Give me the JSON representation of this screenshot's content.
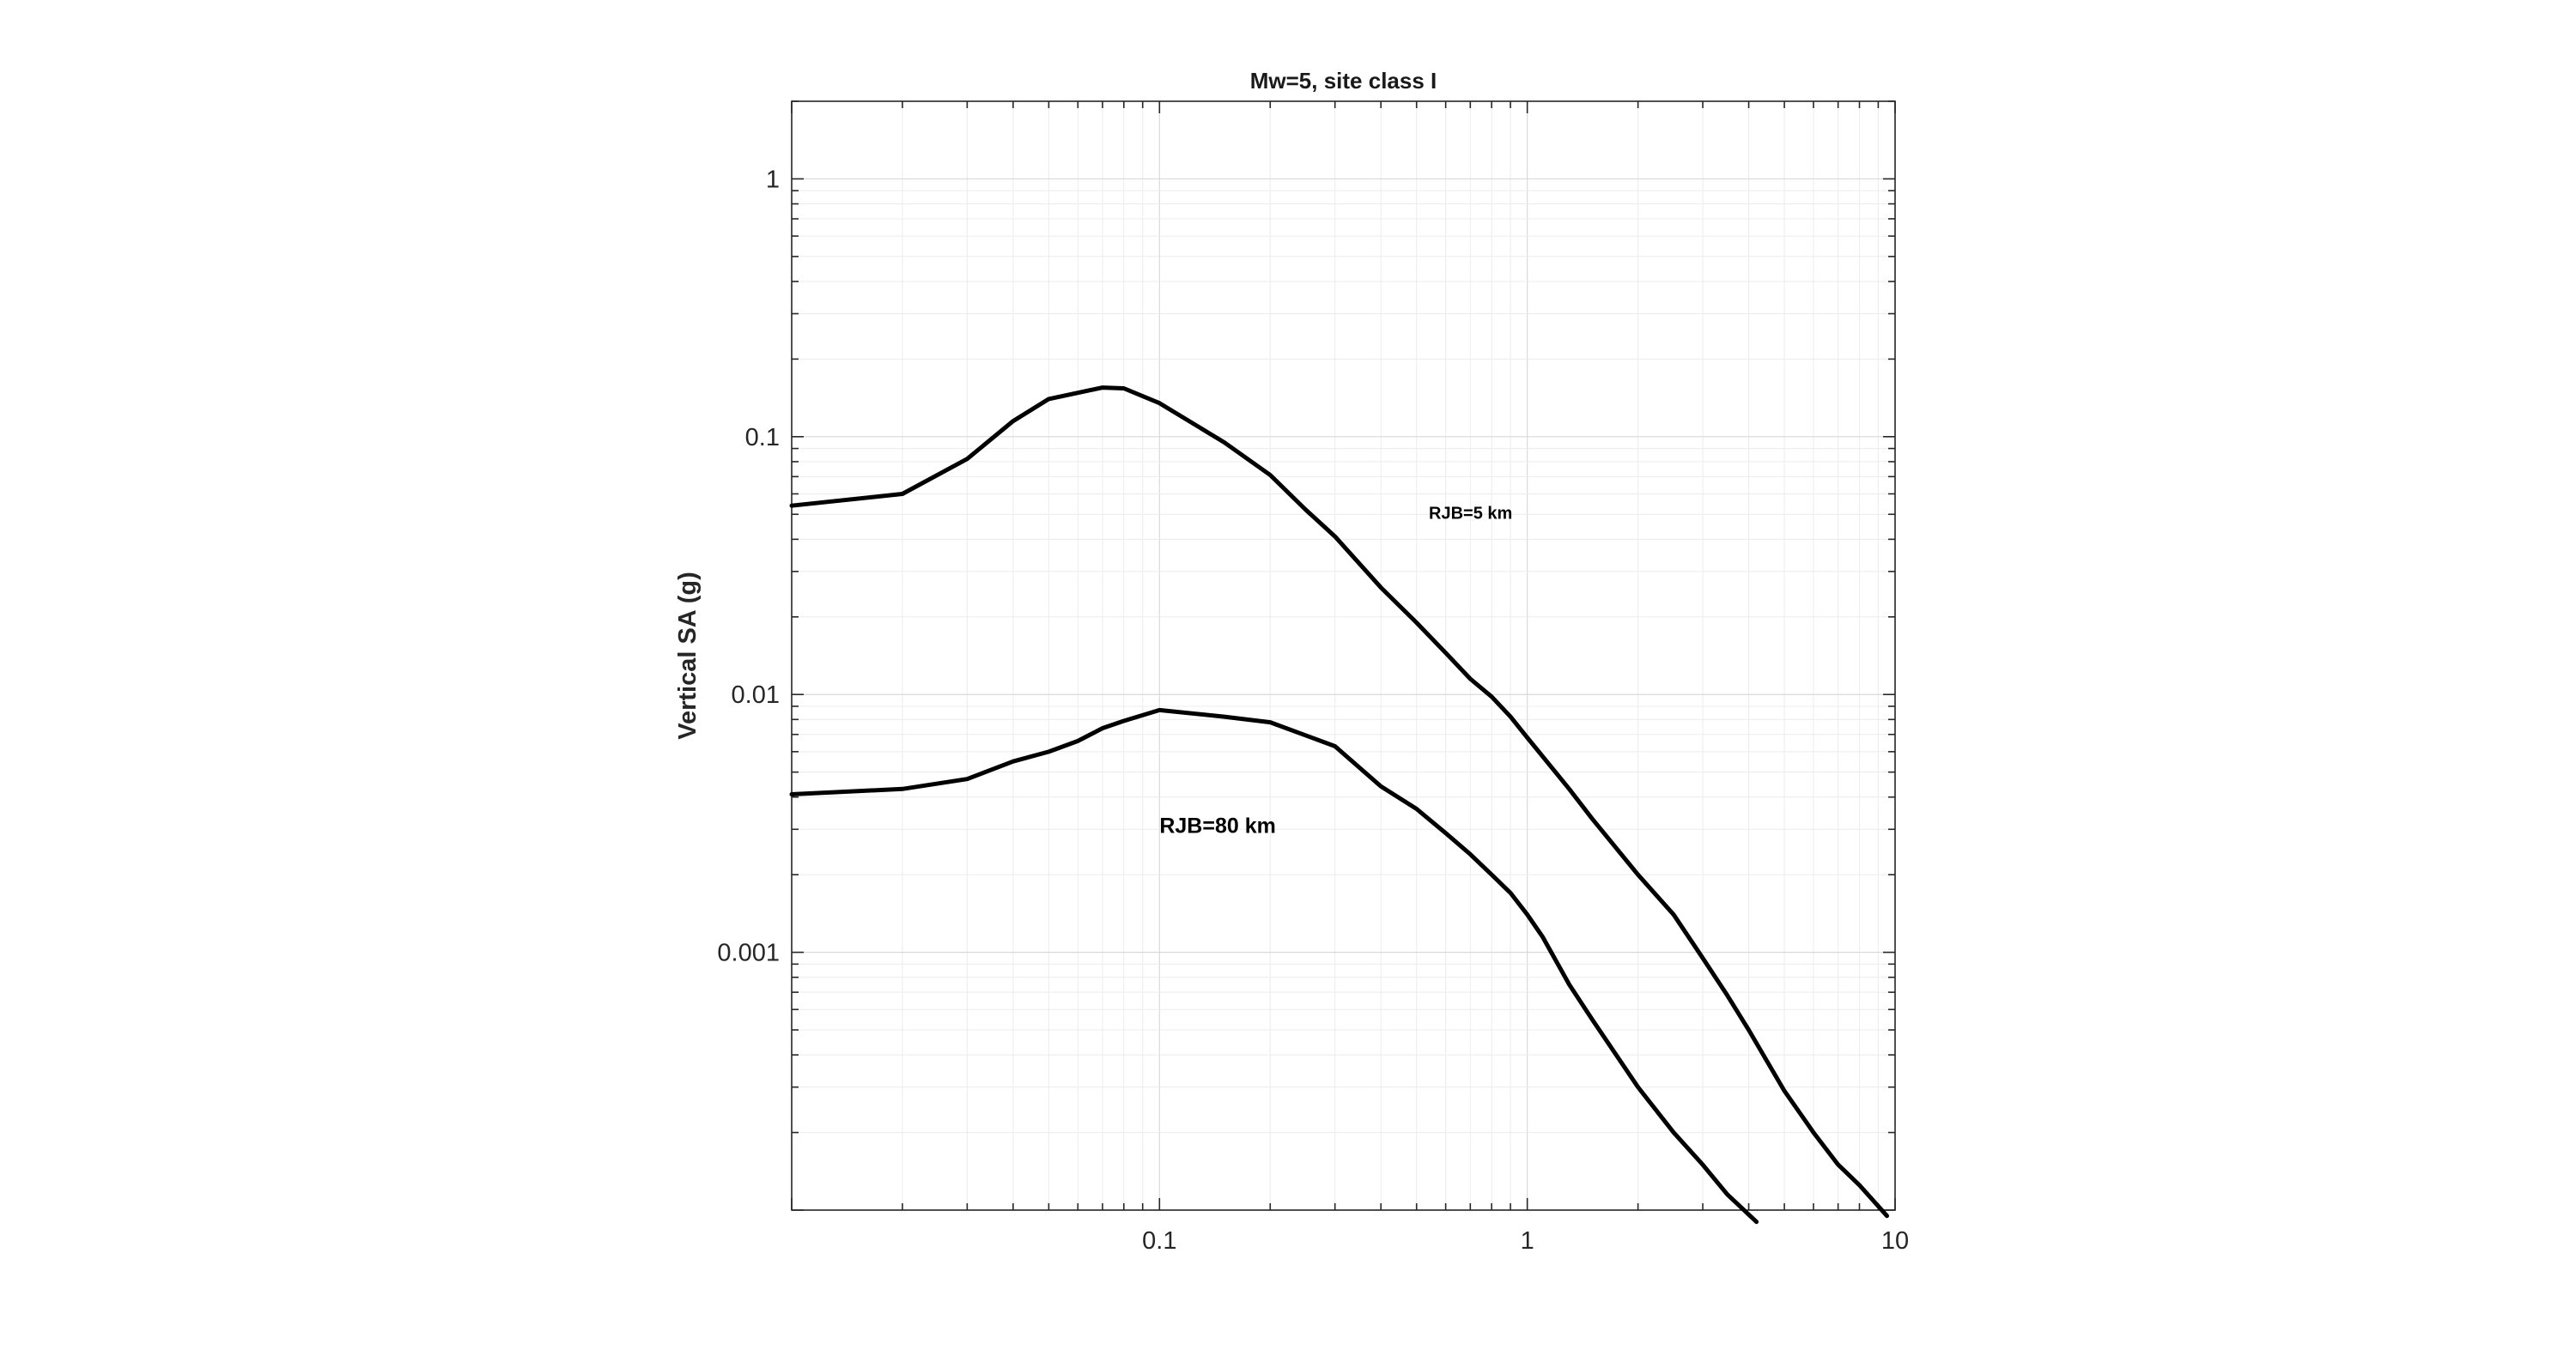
{
  "chart_data": {
    "type": "line",
    "title": "Mw=5, site class I",
    "xlabel": "",
    "ylabel": "Vertical SA (g)",
    "xscale": "log",
    "yscale": "log",
    "xlim": [
      0.01,
      10
    ],
    "ylim": [
      0.0001,
      2
    ],
    "grid": true,
    "xticks": [
      {
        "value": 0.1,
        "label": "0.1"
      },
      {
        "value": 1,
        "label": "1"
      },
      {
        "value": 10,
        "label": "10"
      }
    ],
    "yticks": [
      {
        "value": 0.001,
        "label": "0.001"
      },
      {
        "value": 0.01,
        "label": "0.01"
      },
      {
        "value": 0.1,
        "label": "0.1"
      },
      {
        "value": 1,
        "label": "1"
      }
    ],
    "series": [
      {
        "color": "#000000",
        "x": [
          0.01,
          0.02,
          0.03,
          0.04,
          0.05,
          0.07,
          0.08,
          0.1,
          0.15,
          0.2,
          0.25,
          0.3,
          0.4,
          0.5,
          0.6,
          0.7,
          0.8,
          0.9,
          1.0,
          1.3,
          1.5,
          2.0,
          2.5,
          3.0,
          3.5,
          4.0,
          5.0,
          6.0,
          7.0,
          8.0,
          9.5
        ],
        "y": [
          0.054,
          0.06,
          0.082,
          0.115,
          0.14,
          0.155,
          0.154,
          0.135,
          0.095,
          0.071,
          0.052,
          0.041,
          0.026,
          0.019,
          0.0145,
          0.0115,
          0.0098,
          0.0082,
          0.0068,
          0.0043,
          0.0033,
          0.002,
          0.0014,
          0.00095,
          0.00068,
          0.0005,
          0.00029,
          0.0002,
          0.00015,
          0.000125,
          9.5e-05
        ]
      },
      {
        "color": "#000000",
        "x": [
          0.01,
          0.02,
          0.03,
          0.04,
          0.05,
          0.06,
          0.07,
          0.08,
          0.1,
          0.15,
          0.2,
          0.3,
          0.4,
          0.5,
          0.6,
          0.7,
          0.8,
          0.9,
          1.0,
          1.1,
          1.3,
          1.5,
          2.0,
          2.5,
          3.0,
          3.5,
          4.2
        ],
        "y": [
          0.0041,
          0.0043,
          0.0047,
          0.0055,
          0.006,
          0.0066,
          0.0074,
          0.0079,
          0.0087,
          0.0082,
          0.0078,
          0.0063,
          0.0044,
          0.0036,
          0.0029,
          0.0024,
          0.002,
          0.0017,
          0.0014,
          0.00115,
          0.00075,
          0.00055,
          0.0003,
          0.0002,
          0.00015,
          0.000115,
          9e-05
        ]
      }
    ],
    "annotations": [
      {
        "text": "RJB=5 km",
        "x": 0.54,
        "y": 0.048,
        "style": "small"
      },
      {
        "text": "RJB=80 km",
        "x": 0.1,
        "y": 0.0029,
        "style": "large"
      }
    ]
  }
}
